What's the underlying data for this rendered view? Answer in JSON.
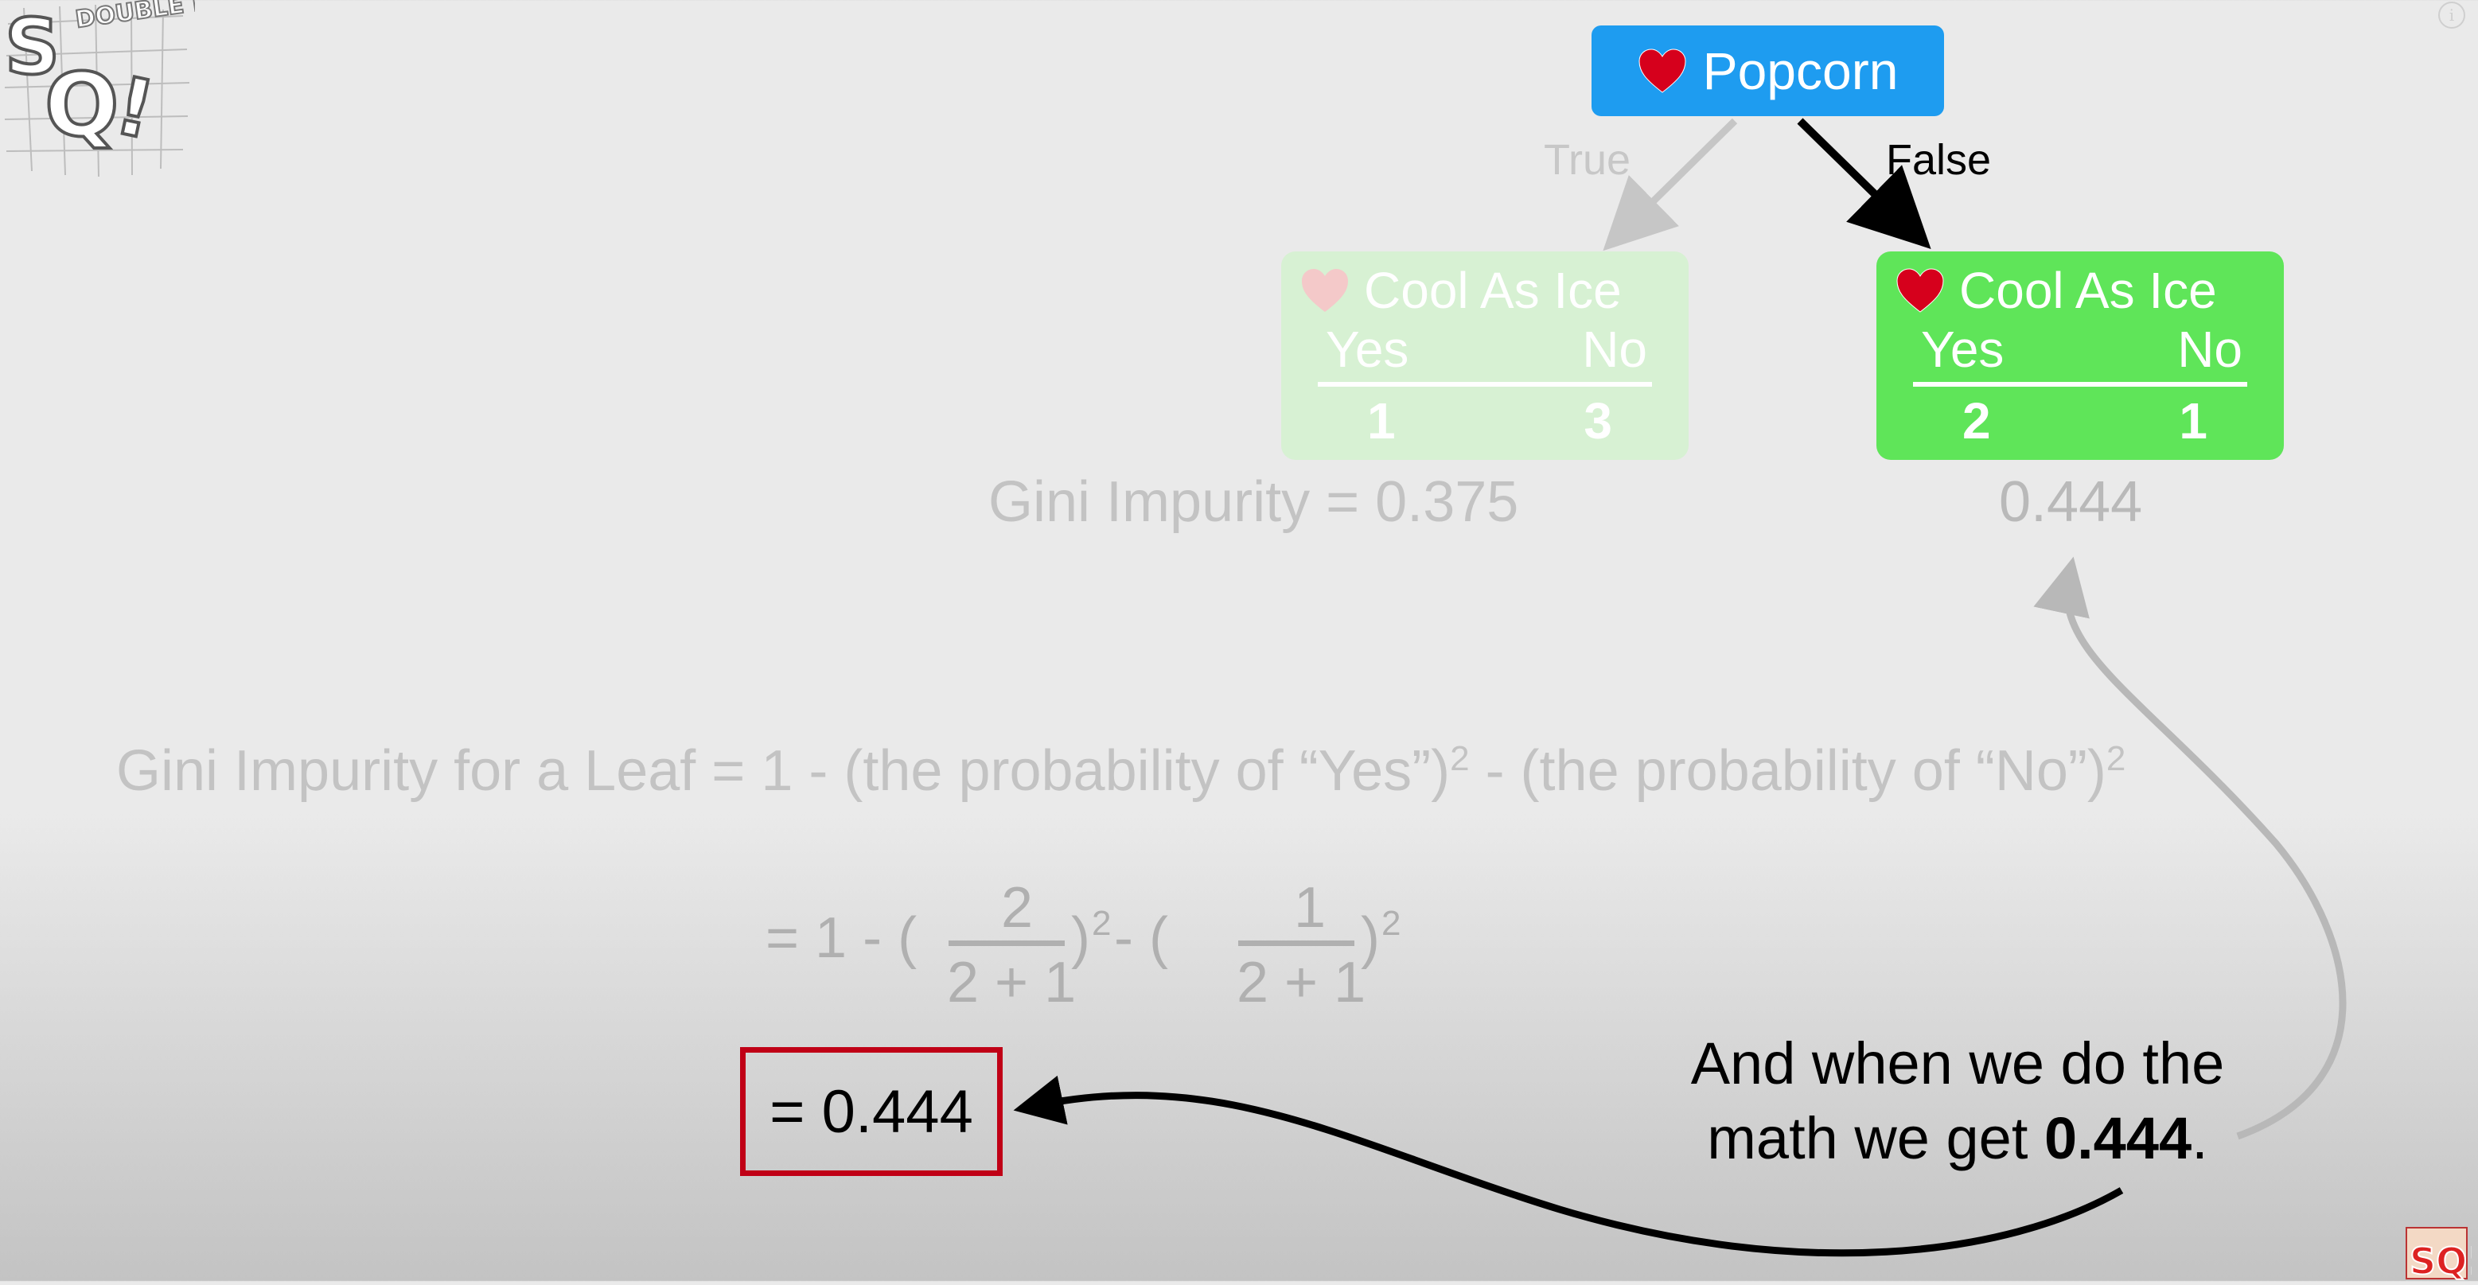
{
  "logo": {
    "main_text": "SQ!",
    "burst_text": "DOUBLE BAM!!!"
  },
  "root_node": {
    "label": "Popcorn"
  },
  "edges": {
    "true_label": "True",
    "false_label": "False"
  },
  "left_leaf": {
    "title": "Cool As Ice",
    "col_yes": "Yes",
    "col_no": "No",
    "yes_count": "1",
    "no_count": "3"
  },
  "right_leaf": {
    "title": "Cool As Ice",
    "col_yes": "Yes",
    "col_no": "No",
    "yes_count": "2",
    "no_count": "1"
  },
  "left_gini": "Gini Impurity = 0.375",
  "right_gini": "0.444",
  "formula": {
    "text_1": "Gini Impurity for a Leaf = 1 - (the probability of “Yes”)",
    "sup_1": "2",
    "text_2": " - (the probability of “No”)",
    "sup_2": "2"
  },
  "calculation": {
    "prefix": "= 1 - (",
    "frac1_num": "2",
    "frac1_den": "2 + 1",
    "mid": ")",
    "sup_1": "2",
    "mid2": " - (",
    "frac2_num": "1",
    "frac2_den": "2 + 1",
    "close": ")",
    "sup_2": "2"
  },
  "result": "= 0.444",
  "caption": {
    "line1": "And when we do the",
    "line2_prefix": "math we get ",
    "line2_value": "0.444",
    "line2_suffix": "."
  },
  "colors": {
    "root": "#1e9cf0",
    "leaf_active": "#5fe559",
    "leaf_faded": "#d7f1d3",
    "result_border": "#c00016"
  }
}
